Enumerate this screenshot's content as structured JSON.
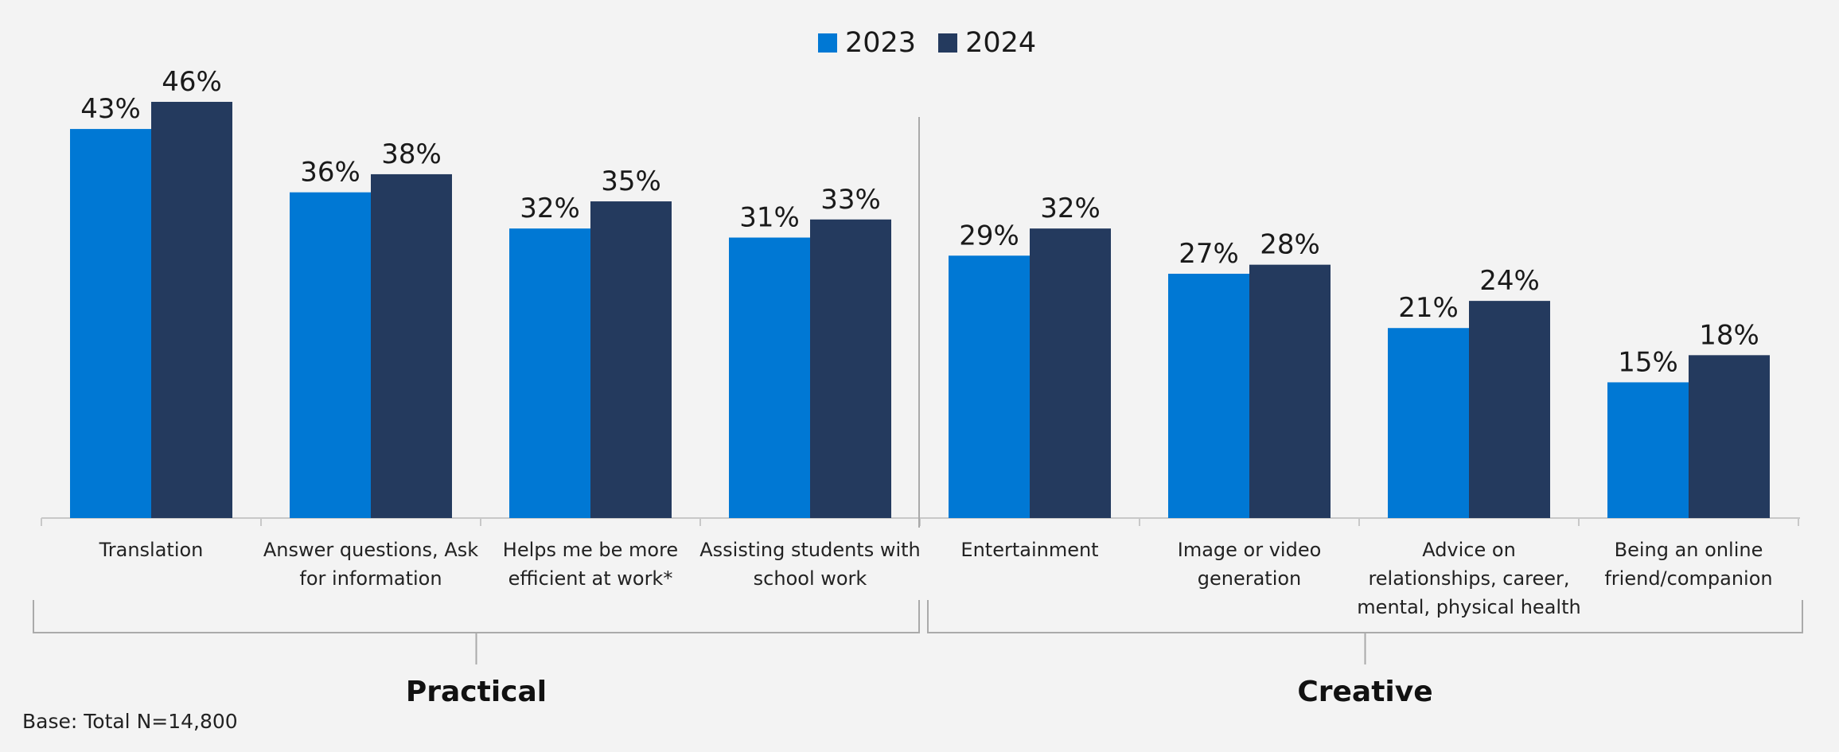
{
  "colors": {
    "background": "#f3f3f3",
    "series_2023": "#0078d4",
    "series_2024": "#243a5e",
    "axis": "#c8c8c8",
    "divider": "#aaaaaa"
  },
  "legend": {
    "items": [
      {
        "label": "2023",
        "color": "#0078d4"
      },
      {
        "label": "2024",
        "color": "#243a5e"
      }
    ]
  },
  "chart_data": {
    "type": "bar",
    "categories": [
      [
        "Translation"
      ],
      [
        "Answer questions, Ask",
        "for information"
      ],
      [
        "Helps me be more",
        "efficient at work*"
      ],
      [
        "Assisting students with",
        "school work"
      ],
      [
        "Entertainment"
      ],
      [
        "Image or video",
        "generation"
      ],
      [
        "Advice on",
        "relationships, career,",
        "mental, physical health"
      ],
      [
        "Being an online",
        "friend/companion"
      ]
    ],
    "series": [
      {
        "name": "2023",
        "values": [
          43,
          36,
          32,
          31,
          29,
          27,
          21,
          15
        ],
        "labels": [
          "43%",
          "36%",
          "32%",
          "31%",
          "29%",
          "27%",
          "21%",
          "15%"
        ]
      },
      {
        "name": "2024",
        "values": [
          46,
          38,
          35,
          33,
          32,
          28,
          24,
          18
        ],
        "labels": [
          "46%",
          "38%",
          "35%",
          "33%",
          "32%",
          "28%",
          "24%",
          "18%"
        ]
      }
    ],
    "groups": [
      {
        "label": "Practical",
        "categories": [
          0,
          1,
          2,
          3
        ]
      },
      {
        "label": "Creative",
        "categories": [
          4,
          5,
          6,
          7
        ]
      }
    ],
    "unit": "%",
    "ylim": [
      0,
      47
    ],
    "grid": false,
    "legend_position": "top-center"
  },
  "footnote": "Base: Total N=14,800"
}
